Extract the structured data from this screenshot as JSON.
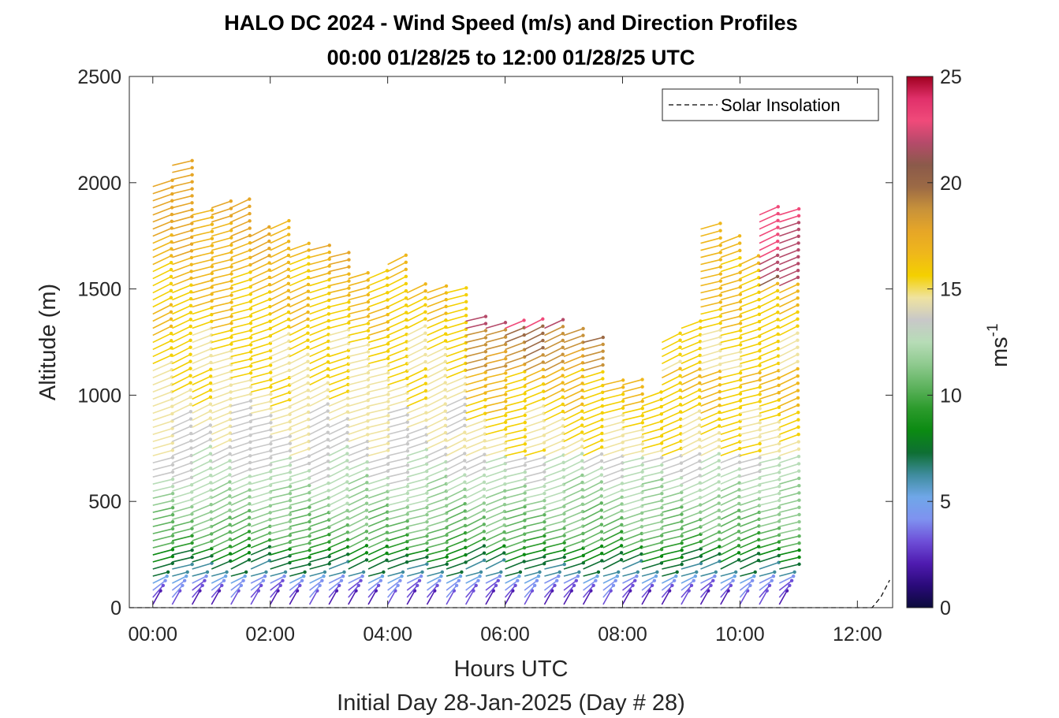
{
  "colors": {
    "colormap": [
      "#0b0b3b",
      "#2a0a7a",
      "#4f1bb0",
      "#6e4fd8",
      "#7f92f0",
      "#6fa7e8",
      "#3f8c9e",
      "#0e6f33",
      "#0b8a12",
      "#2c9b2c",
      "#5fb35f",
      "#8fca8f",
      "#b7dcb7",
      "#c8c8c8",
      "#efe3a0",
      "#f4d000",
      "#efb71b",
      "#e6a627",
      "#c8923a",
      "#9c6a45",
      "#8b5a4a",
      "#b54a6a",
      "#f04a7a",
      "#e0306a",
      "#a00020"
    ],
    "insolation": "#000000"
  },
  "chart_data": {
    "type": "wind-barb-profile",
    "title": "HALO DC 2024 - Wind Speed (m/s) and Direction Profiles",
    "subtitle": "00:00 01/28/25 to 12:00 01/28/25  UTC",
    "xlabel": "Hours UTC",
    "ylabel": "Altitude (m)",
    "footer": "Initial Day 28-Jan-2025 (Day # 28)",
    "colorbar_label": "ms",
    "colorbar_exponent": "-1",
    "xlim": [
      -0.4,
      12.6
    ],
    "ylim": [
      0,
      2500
    ],
    "x_ticks": [
      0,
      2,
      4,
      6,
      8,
      10,
      12
    ],
    "x_tick_labels": [
      "00:00",
      "02:00",
      "04:00",
      "06:00",
      "08:00",
      "10:00",
      "12:00"
    ],
    "y_ticks": [
      0,
      500,
      1000,
      1500,
      2000,
      2500
    ],
    "y_tick_labels": [
      "0",
      "500",
      "1000",
      "1500",
      "2000",
      "2500"
    ],
    "colorbar_ticks": [
      0,
      5,
      10,
      15,
      20,
      25
    ],
    "colorbar_tick_labels": [
      "0",
      "5",
      "10",
      "15",
      "20",
      "25"
    ],
    "colorbar_range": [
      0,
      25
    ],
    "legend": {
      "entries": [
        "Solar Insolation"
      ],
      "placement": "top-right"
    },
    "profile_times_h": [
      0.0,
      0.33,
      0.67,
      1.0,
      1.33,
      1.67,
      2.0,
      2.33,
      2.67,
      3.0,
      3.33,
      3.67,
      4.0,
      4.33,
      4.67,
      5.0,
      5.33,
      5.67,
      6.0,
      6.33,
      6.67,
      7.0,
      7.33,
      7.67,
      8.0,
      8.33,
      8.67,
      9.0,
      9.33,
      9.67,
      10.0,
      10.33,
      10.67
    ],
    "profile_top_m": [
      2000,
      2100,
      1850,
      1900,
      1910,
      1780,
      1790,
      1700,
      1700,
      1660,
      1560,
      1550,
      1620,
      1500,
      1500,
      1490,
      1360,
      1330,
      1330,
      1320,
      1320,
      1290,
      1250,
      1080,
      1080,
      1010,
      1280,
      1330,
      1790,
      1740,
      1640,
      1880,
      1870
    ],
    "insolation_series": {
      "name": "Solar Insolation",
      "x": [
        -0.4,
        12.25,
        12.4,
        12.55
      ],
      "y": [
        0,
        0,
        50,
        130
      ]
    }
  }
}
